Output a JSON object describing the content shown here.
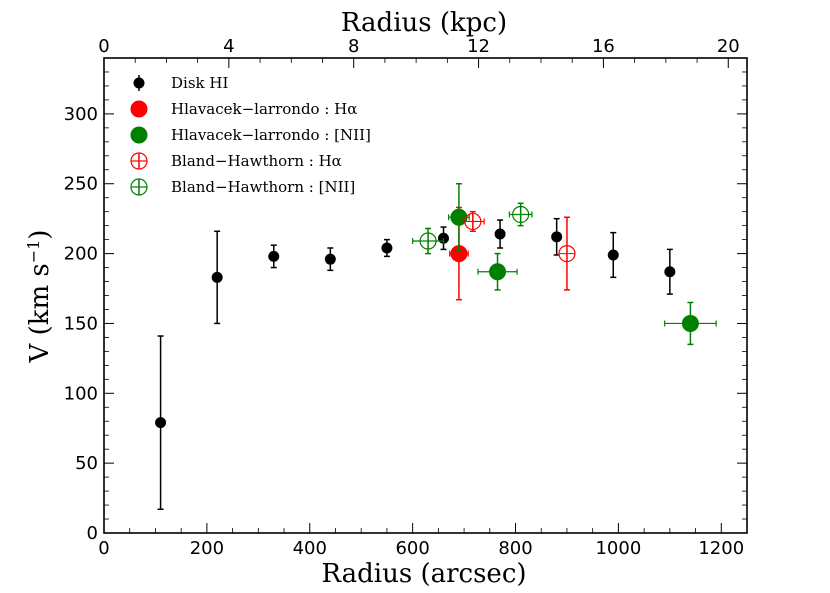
{
  "chart_data": {
    "type": "scatter",
    "title": "",
    "xlabel": "Radius (arcsec)",
    "x2label": "Radius (kpc)",
    "ylabel": "V (km s",
    "ylabel_sup": "−1",
    "ylabel_close": ")",
    "xlim": [
      0,
      1250
    ],
    "ylim": [
      0,
      340
    ],
    "x2lim": [
      0,
      20.6
    ],
    "xticks": [
      0,
      200,
      400,
      600,
      800,
      1000,
      1200
    ],
    "xtick_labels": [
      "0",
      "200",
      "400",
      "600",
      "800",
      "1000",
      "1200"
    ],
    "yticks": [
      0,
      50,
      100,
      150,
      200,
      250,
      300
    ],
    "ytick_labels": [
      "0",
      "50",
      "100",
      "150",
      "200",
      "250",
      "300"
    ],
    "x2ticks": [
      0,
      4,
      8,
      12,
      16,
      20
    ],
    "x2tick_labels": [
      "0",
      "4",
      "8",
      "12",
      "16",
      "20"
    ],
    "legend_position": "top-left",
    "grid": false,
    "series": [
      {
        "name": "Disk HI",
        "legend_label": "Disk HI",
        "color": "#000000",
        "marker": "filled",
        "x": [
          110,
          220,
          330,
          440,
          550,
          660,
          770,
          880,
          990,
          1100
        ],
        "y": [
          79,
          183,
          198,
          196,
          204,
          211,
          214,
          212,
          199,
          187
        ],
        "yerr": [
          62,
          33,
          8,
          8,
          6,
          8,
          10,
          13,
          16,
          16
        ],
        "xerr": [
          0,
          0,
          0,
          0,
          0,
          0,
          0,
          0,
          0,
          0
        ]
      },
      {
        "name": "Hlavacek-larrondo Halpha",
        "legend_label": "Hlavacek−larrondo : Hα",
        "color": "#ff0000",
        "marker": "filled",
        "x": [
          690
        ],
        "y": [
          200
        ],
        "yerr": [
          33
        ],
        "xerr": [
          18
        ]
      },
      {
        "name": "Hlavacek-larrondo NII",
        "legend_label": "Hlavacek−larrondo : [NII]",
        "color": "#008000",
        "marker": "filled",
        "x": [
          690,
          765,
          1140
        ],
        "y": [
          226,
          187,
          150
        ],
        "yerr": [
          24,
          13,
          15
        ],
        "xerr": [
          20,
          38,
          50
        ]
      },
      {
        "name": "Bland-Hawthorn Halpha",
        "legend_label": "Bland−Hawthorn : Hα",
        "color": "#ff0000",
        "marker": "open",
        "x": [
          717,
          900
        ],
        "y": [
          223,
          200
        ],
        "yerr": [
          7,
          26
        ],
        "xerr": [
          22,
          0
        ]
      },
      {
        "name": "Bland-Hawthorn NII",
        "legend_label": "Bland−Hawthorn : [NII]",
        "color": "#008000",
        "marker": "open",
        "x": [
          630,
          810
        ],
        "y": [
          209,
          228
        ],
        "yerr": [
          9,
          8
        ],
        "xerr": [
          30,
          22
        ]
      }
    ]
  }
}
